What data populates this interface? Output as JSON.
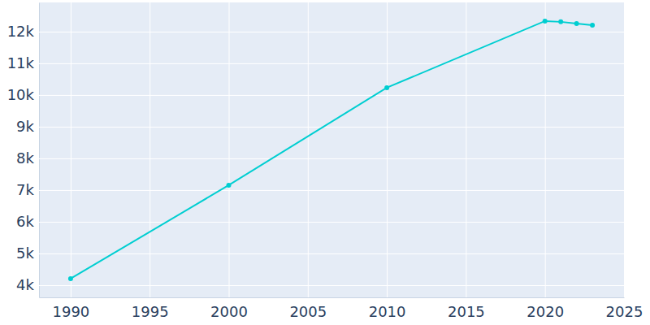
{
  "chart_data": {
    "type": "line",
    "x": [
      1990,
      2000,
      2010,
      2020,
      2021,
      2022,
      2023
    ],
    "values": [
      4205,
      7154,
      10231,
      12333,
      12308,
      12256,
      12205
    ],
    "color": "#00ced1",
    "marker": "circle",
    "xlim": [
      1988,
      2025
    ],
    "xticks": [
      1990,
      1995,
      2000,
      2005,
      2010,
      2015,
      2020,
      2025
    ],
    "ylim": [
      3615,
      12920
    ],
    "yticks": [
      {
        "value": 4000,
        "label": "4k"
      },
      {
        "value": 5000,
        "label": "5k"
      },
      {
        "value": 6000,
        "label": "6k"
      },
      {
        "value": 7000,
        "label": "7k"
      },
      {
        "value": 8000,
        "label": "8k"
      },
      {
        "value": 9000,
        "label": "9k"
      },
      {
        "value": 10000,
        "label": "10k"
      },
      {
        "value": 11000,
        "label": "11k"
      },
      {
        "value": 12000,
        "label": "12k"
      }
    ],
    "grid": true
  }
}
